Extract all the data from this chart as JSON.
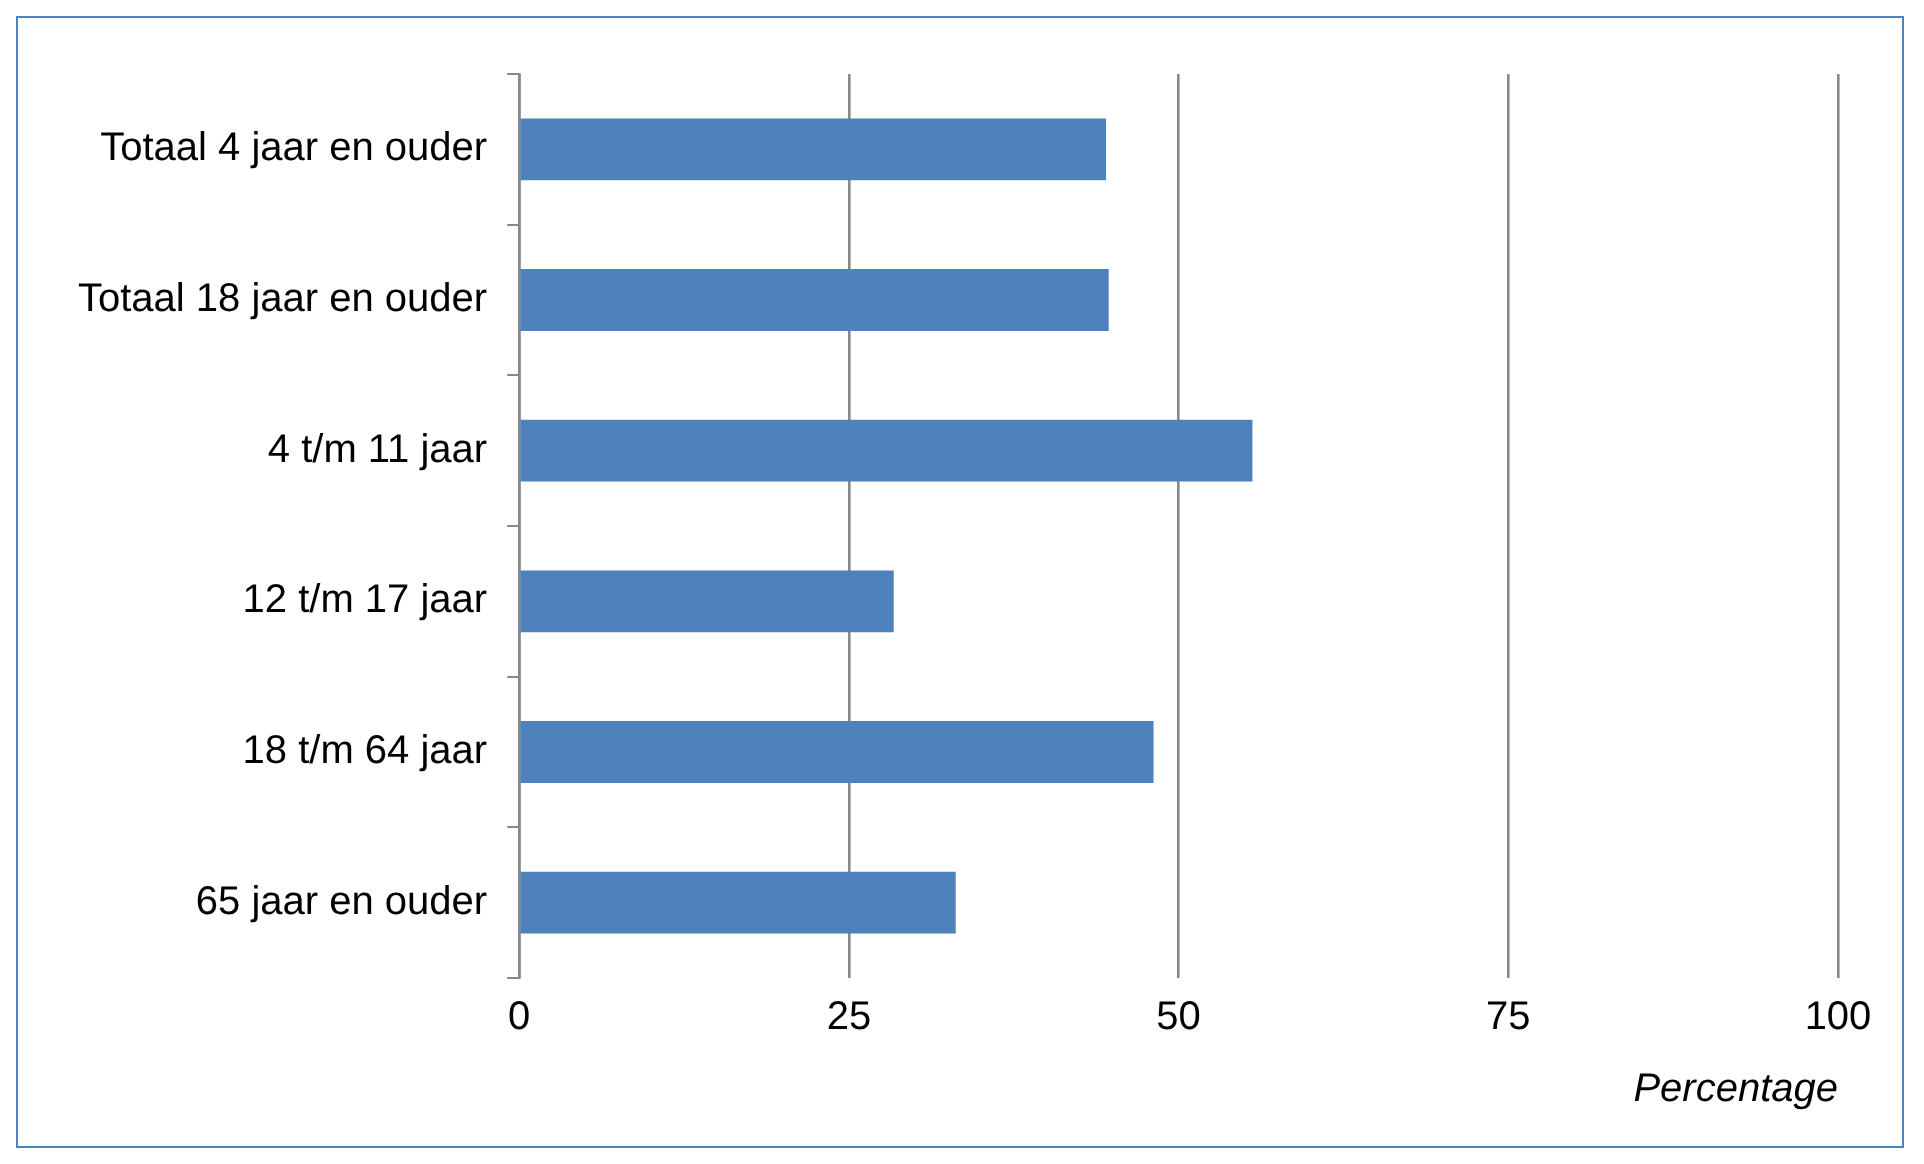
{
  "chart_data": {
    "type": "bar",
    "orientation": "horizontal",
    "xlabel": "Percentage",
    "categories": [
      "Totaal 4 jaar en ouder",
      "Totaal 18 jaar en ouder",
      "4 t/m 11 jaar",
      "12 t/m 17 jaar",
      "18 t/m 64 jaar",
      "65 jaar en ouder"
    ],
    "values": [
      44.5,
      44.7,
      55.6,
      28.4,
      48.1,
      33.1
    ],
    "color": "#4f81bd",
    "xlim": [
      0,
      100
    ],
    "xticks": [
      0,
      25,
      50,
      75,
      100
    ],
    "grid": "x",
    "legend": false
  }
}
